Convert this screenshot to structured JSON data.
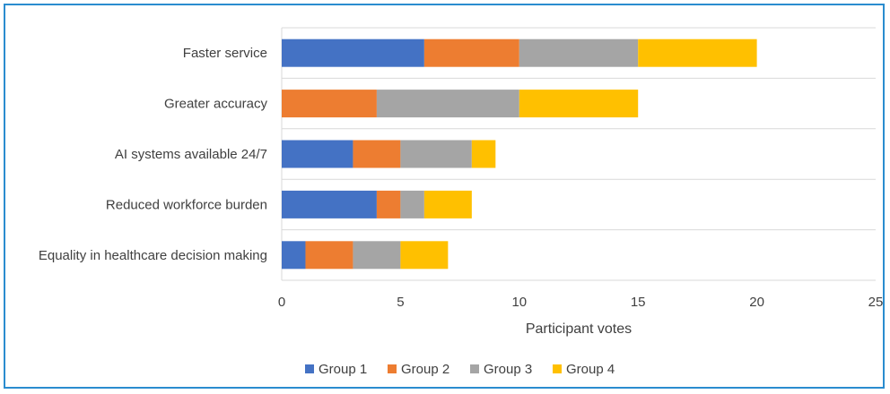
{
  "chart_data": {
    "type": "bar",
    "orientation": "horizontal",
    "stacked": true,
    "categories": [
      "Faster service",
      "Greater accuracy",
      "AI systems available 24/7",
      "Reduced workforce burden",
      "Equality in healthcare decision making"
    ],
    "series": [
      {
        "name": "Group 1",
        "color": "#4472c4",
        "values": [
          6,
          0,
          3,
          4,
          1
        ]
      },
      {
        "name": "Group 2",
        "color": "#ed7d31",
        "values": [
          4,
          4,
          2,
          1,
          2
        ]
      },
      {
        "name": "Group 3",
        "color": "#a5a5a5",
        "values": [
          5,
          6,
          3,
          1,
          2
        ]
      },
      {
        "name": "Group 4",
        "color": "#ffc000",
        "values": [
          5,
          5,
          1,
          2,
          2
        ]
      }
    ],
    "xlabel": "Participant votes",
    "xlim": [
      0,
      25
    ],
    "xticks": [
      "0",
      "5",
      "10",
      "15",
      "20",
      "25"
    ],
    "grid": true,
    "legend_position": "bottom"
  }
}
